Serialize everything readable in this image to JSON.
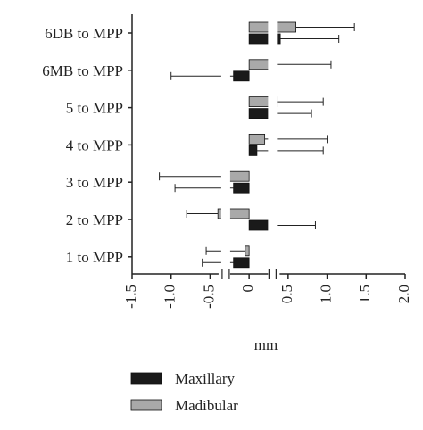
{
  "colors": {
    "maxillary": "#1a1a1a",
    "madibular": "#a9a9a9",
    "axis": "#222222",
    "background": "#ffffff"
  },
  "chart_data": {
    "type": "bar",
    "orientation": "horizontal",
    "categories": [
      "6DB to MPP",
      "6MB to MPP",
      "5 to MPP",
      "4 to MPP",
      "3 to MPP",
      "2 to MPP",
      "1 to MPP"
    ],
    "series": [
      {
        "name": "Maxillary",
        "color": "#1a1a1a",
        "values": [
          0.4,
          -0.2,
          0.3,
          0.1,
          -0.2,
          0.3,
          -0.2
        ],
        "error_plus": [
          0.75,
          null,
          0.5,
          0.85,
          null,
          0.55,
          null
        ],
        "error_minus": [
          null,
          0.8,
          null,
          null,
          0.75,
          null,
          0.4
        ]
      },
      {
        "name": "Madibular",
        "color": "#a9a9a9",
        "values": [
          0.6,
          0.25,
          0.35,
          0.2,
          -0.3,
          -0.4,
          -0.05
        ],
        "error_plus": [
          0.75,
          0.8,
          0.6,
          0.8,
          null,
          null,
          null
        ],
        "error_minus": [
          null,
          null,
          null,
          null,
          0.85,
          0.4,
          0.5
        ]
      }
    ],
    "xlabel": "mm",
    "xlim": [
      -1.5,
      2.0
    ],
    "xticks": [
      "-1.5",
      "-1.0",
      "-0.5",
      "0",
      "0.5",
      "1.0",
      "1.5",
      "2.0"
    ],
    "axis_break": [
      -0.3,
      0.3
    ],
    "legend": {
      "placement": "bottom-center",
      "entries": [
        "Maxillary",
        "Madibular"
      ]
    },
    "grid": false
  }
}
